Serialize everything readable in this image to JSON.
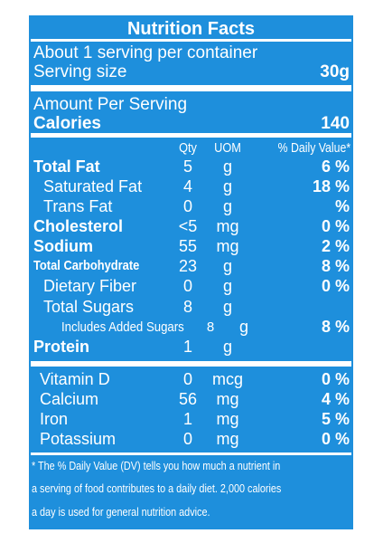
{
  "title": "Nutrition Facts",
  "servings_per_container": "About 1 serving per container",
  "serving_size_label": "Serving size",
  "serving_size_value": "30g",
  "amount_per_serving": "Amount Per Serving",
  "calories_label": "Calories",
  "calories_value": "140",
  "column_headers": {
    "qty": "Qty",
    "uom": "UOM",
    "dv": "% Daily Value*"
  },
  "nutrients": [
    {
      "name": "Total Fat",
      "qty": "5",
      "uom": "g",
      "dv": "6 %"
    },
    {
      "name": "Saturated Fat",
      "qty": "4",
      "uom": "g",
      "dv": "18 %"
    },
    {
      "name": "Trans Fat",
      "qty": "0",
      "uom": "g",
      "dv": "%"
    },
    {
      "name": "Cholesterol",
      "qty": "<5",
      "uom": "mg",
      "dv": "0 %"
    },
    {
      "name": "Sodium",
      "qty": "55",
      "uom": "mg",
      "dv": "2 %"
    },
    {
      "name": "Total Carbohydrate",
      "qty": "23",
      "uom": "g",
      "dv": "8 %"
    },
    {
      "name": "Dietary Fiber",
      "qty": "0",
      "uom": "g",
      "dv": "0 %"
    },
    {
      "name": "Total Sugars",
      "qty": "8",
      "uom": "g",
      "dv": ""
    },
    {
      "name": "Includes Added Sugars",
      "qty": "8",
      "uom": "g",
      "dv": "8 %"
    },
    {
      "name": "Protein",
      "qty": "1",
      "uom": "g",
      "dv": ""
    }
  ],
  "vitamins": [
    {
      "name": "Vitamin D",
      "qty": "0",
      "uom": "mcg",
      "dv": "0 %"
    },
    {
      "name": "Calcium",
      "qty": "56",
      "uom": "mg",
      "dv": "4 %"
    },
    {
      "name": "Iron",
      "qty": "1",
      "uom": "mg",
      "dv": "5 %"
    },
    {
      "name": "Potassium",
      "qty": "0",
      "uom": "mg",
      "dv": "0 %"
    }
  ],
  "footnote_lines": [
    "* The % Daily Value (DV) tells you how much a nutrient in",
    "a serving of food contributes to a daily diet. 2,000 calories",
    "a day is used for general nutrition advice."
  ],
  "colors": {
    "label_background": "#1e8fdc",
    "text": "#ffffff"
  }
}
